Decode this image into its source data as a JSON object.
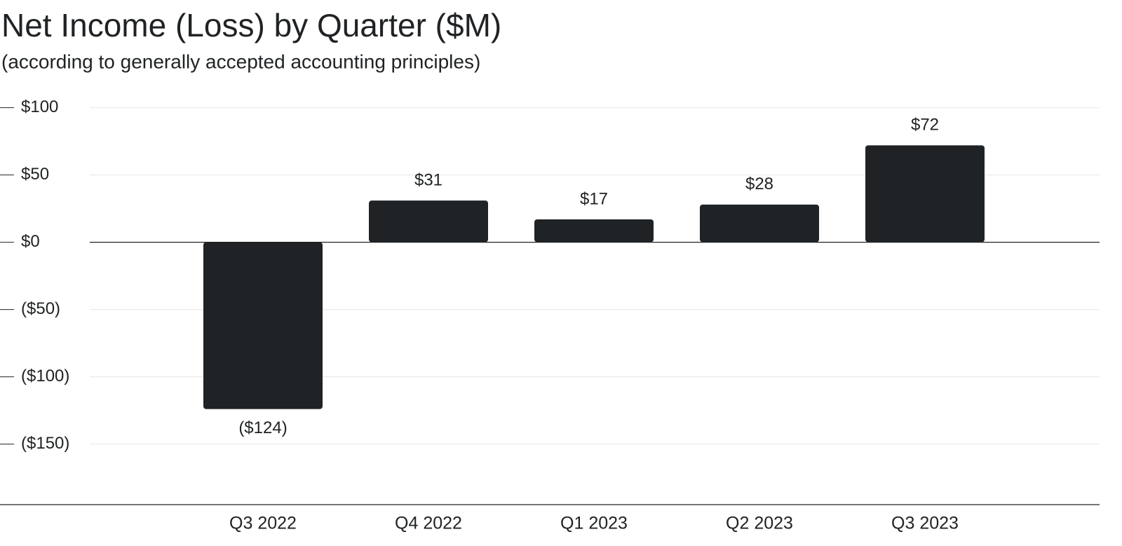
{
  "chart_data": {
    "type": "bar",
    "title": "Net Income (Loss) by Quarter ($M)",
    "subtitle": "(according to generally accepted accounting principles)",
    "categories": [
      "Q3 2022",
      "Q4 2022",
      "Q1 2023",
      "Q2 2023",
      "Q3 2023"
    ],
    "values": [
      -124,
      31,
      17,
      28,
      72
    ],
    "value_labels": [
      "($124)",
      "$31",
      "$17",
      "$28",
      "$72"
    ],
    "color": "#202325",
    "ylim": [
      -195,
      105
    ],
    "yticks": [
      {
        "value": 100,
        "label": "$100"
      },
      {
        "value": 50,
        "label": "$50"
      },
      {
        "value": 0,
        "label": "$0"
      },
      {
        "value": -50,
        "label": "($50)"
      },
      {
        "value": -100,
        "label": "($100)"
      },
      {
        "value": -150,
        "label": "($150)"
      }
    ],
    "grid": true
  }
}
